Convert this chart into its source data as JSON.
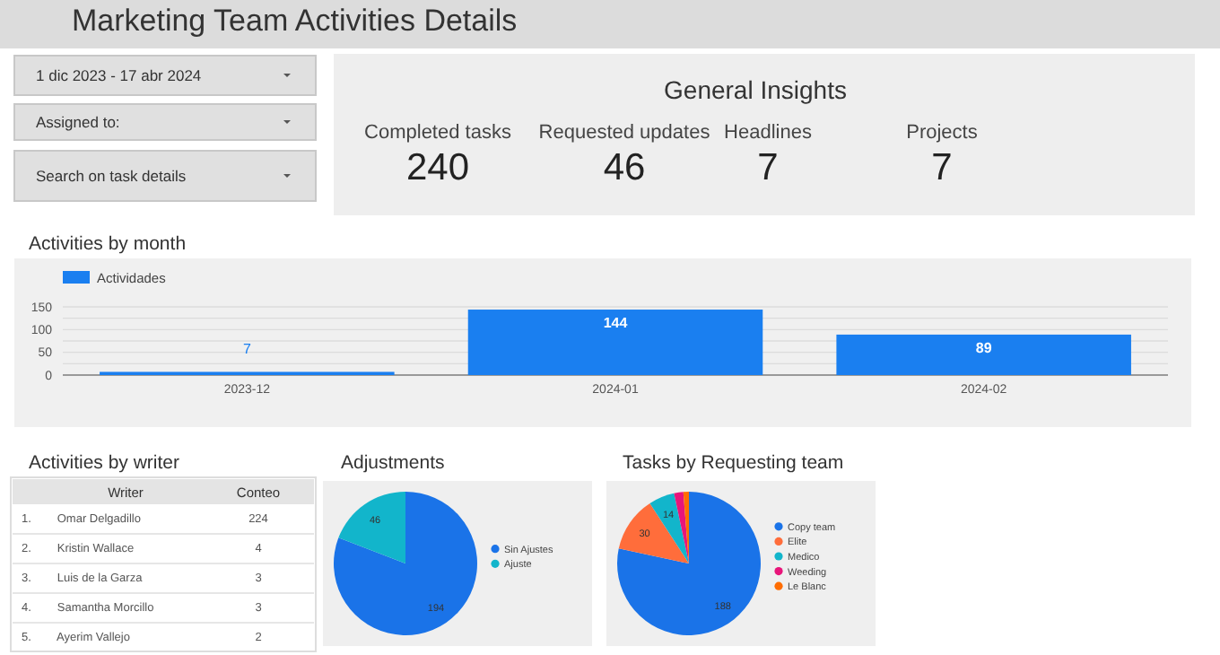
{
  "chart_data": [
    {
      "type": "other",
      "title": "Marketing Team Activities Details",
      "subtitle": "General Insights",
      "annotations": [
        "1 dic 2023 - 17 abr 2024",
        "Assigned to:",
        "Search on task details",
        "Completed tasks",
        "240",
        "Requested updates",
        "46",
        "Headlines",
        "7",
        "Projects",
        "7"
      ]
    },
    {
      "type": "bar",
      "title": "Activities by month",
      "categories": [
        "2023-12",
        "2024-01",
        "2024-02"
      ],
      "series": [
        {
          "name": "Actividades",
          "color": "#1a7ff0",
          "values": [
            7,
            144,
            89
          ]
        }
      ],
      "ylim": [
        0,
        150
      ],
      "yticks": [
        0,
        50,
        100,
        150
      ],
      "grid": true,
      "legend": "top left",
      "data_labels": true
    },
    {
      "type": "other",
      "title": "Activities by writer",
      "categories": [
        "Omar Delgadillo",
        "Kristin Wallace",
        "Luis de la Garza",
        "Samantha Morcillo",
        "Ayerim Vallejo"
      ],
      "values": [
        224,
        4,
        3,
        3,
        2
      ],
      "data_labels": true,
      "annotations": [
        "Writer",
        "Conteo",
        "1.",
        "2.",
        "3.",
        "4.",
        "5."
      ]
    },
    {
      "type": "pie",
      "title": "Adjustments",
      "categories": [
        "Sin Ajustes",
        "Ajuste"
      ],
      "values": [
        194,
        46
      ],
      "colors": [
        "#1a73e8",
        "#12b5cb"
      ],
      "data_labels": true,
      "legend": "right"
    },
    {
      "type": "pie",
      "title": "Tasks by Requesting team",
      "categories": [
        "Copy team",
        "Elite",
        "Medico",
        "Weeding",
        "Le Blanc"
      ],
      "values": [
        188,
        30,
        14,
        5,
        3
      ],
      "value_labels": [
        "188",
        "30",
        "14",
        null,
        null
      ],
      "colors": [
        "#1a73e8",
        "#ff6d3b",
        "#12b5cb",
        "#e8157a",
        "#ff6d01"
      ],
      "legend": "right"
    }
  ]
}
